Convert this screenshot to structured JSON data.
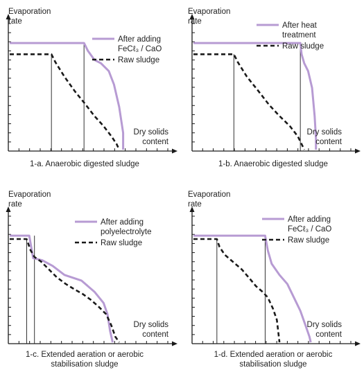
{
  "colors": {
    "after": "#b79bd3",
    "raw": "#1a1a1a",
    "axis": "#1a1a1a"
  },
  "chart_data": [
    {
      "type": "line",
      "ylabel_lines": [
        "Evaporation",
        "rate"
      ],
      "xlabel_lines": [
        "Dry solids",
        "content"
      ],
      "caption_lines": [
        "1-a. Anaerobic digested sludge"
      ],
      "legend_placement": "top-right",
      "xlim": [
        0,
        100
      ],
      "ylim": [
        0,
        100
      ],
      "series": [
        {
          "name_lines": [
            "After adding",
            "FeCℓ₃ / CaO"
          ],
          "style": "solid",
          "points": [
            [
              0,
              95
            ],
            [
              57,
              95
            ],
            [
              60,
              88
            ],
            [
              65,
              80
            ],
            [
              70,
              77
            ],
            [
              76,
              70
            ],
            [
              80,
              58
            ],
            [
              84,
              38
            ],
            [
              87,
              15
            ],
            [
              87,
              0
            ]
          ]
        },
        {
          "name_lines": [
            "Raw sludge"
          ],
          "style": "dashed",
          "points": [
            [
              0,
              85
            ],
            [
              32,
              85
            ],
            [
              35,
              78
            ],
            [
              42,
              65
            ],
            [
              50,
              52
            ],
            [
              57,
              42
            ],
            [
              65,
              30
            ],
            [
              72,
              21
            ],
            [
              78,
              12
            ],
            [
              82,
              5
            ],
            [
              84,
              0
            ]
          ]
        }
      ],
      "markers_x": [
        32,
        57
      ]
    },
    {
      "type": "line",
      "ylabel_lines": [
        "Evaporation",
        "rate"
      ],
      "xlabel_lines": [
        "Dry solids",
        "content"
      ],
      "caption_lines": [
        "1-b. Anaerobic digested sludge"
      ],
      "legend_placement": "top-right",
      "xlim": [
        0,
        100
      ],
      "ylim": [
        0,
        100
      ],
      "series": [
        {
          "name_lines": [
            "After heat",
            "treatment"
          ],
          "style": "solid",
          "points": [
            [
              0,
              95
            ],
            [
              82,
              95
            ],
            [
              83,
              85
            ],
            [
              85,
              77
            ],
            [
              88,
              70
            ],
            [
              91,
              55
            ],
            [
              93,
              30
            ],
            [
              94,
              10
            ],
            [
              94,
              0
            ]
          ]
        },
        {
          "name_lines": [
            "Raw sludge"
          ],
          "style": "dashed",
          "points": [
            [
              0,
              85
            ],
            [
              31,
              85
            ],
            [
              34,
              78
            ],
            [
              41,
              65
            ],
            [
              50,
              52
            ],
            [
              58,
              40
            ],
            [
              66,
              30
            ],
            [
              74,
              21
            ],
            [
              80,
              12
            ],
            [
              83,
              5
            ],
            [
              85,
              0
            ]
          ]
        }
      ],
      "markers_x": [
        31,
        82
      ]
    },
    {
      "type": "line",
      "ylabel_lines": [
        "Evaporation",
        "rate"
      ],
      "xlabel_lines": [
        "Dry solids",
        "content"
      ],
      "caption_lines": [
        "1-c. Extended aeration or aerobic",
        "stabilisation sludge"
      ],
      "legend_placement": "top-right",
      "xlim": [
        0,
        100
      ],
      "ylim": [
        0,
        100
      ],
      "series": [
        {
          "name_lines": [
            "After adding",
            "polyelectrolyte"
          ],
          "style": "solid",
          "points": [
            [
              0,
              95
            ],
            [
              15,
              95
            ],
            [
              18,
              75
            ],
            [
              25,
              73
            ],
            [
              33,
              68
            ],
            [
              42,
              60
            ],
            [
              55,
              55
            ],
            [
              65,
              45
            ],
            [
              72,
              35
            ],
            [
              75,
              25
            ],
            [
              77,
              10
            ],
            [
              79,
              0
            ]
          ]
        },
        {
          "name_lines": [
            "Raw sludge"
          ],
          "style": "dashed",
          "points": [
            [
              0,
              92
            ],
            [
              13,
              92
            ],
            [
              16,
              82
            ],
            [
              19,
              76
            ],
            [
              24,
              72
            ],
            [
              30,
              65
            ],
            [
              36,
              58
            ],
            [
              43,
              52
            ],
            [
              50,
              47
            ],
            [
              56,
              43
            ],
            [
              62,
              38
            ],
            [
              68,
              32
            ],
            [
              74,
              25
            ],
            [
              78,
              15
            ],
            [
              81,
              5
            ],
            [
              84,
              0
            ]
          ]
        }
      ],
      "markers_x": [
        13,
        19
      ]
    },
    {
      "type": "line",
      "ylabel_lines": [
        "Evaporation",
        "rate"
      ],
      "xlabel_lines": [
        "Dry solids",
        "content"
      ],
      "caption_lines": [
        "1-d. Extended aeration or aerobic",
        "stabilisation sludge"
      ],
      "legend_placement": "top-right",
      "xlim": [
        0,
        100
      ],
      "ylim": [
        0,
        100
      ],
      "series": [
        {
          "name_lines": [
            "After adding",
            "FeCℓ₃ / CaO"
          ],
          "style": "solid",
          "points": [
            [
              0,
              95
            ],
            [
              55,
              95
            ],
            [
              57,
              82
            ],
            [
              60,
              70
            ],
            [
              66,
              60
            ],
            [
              72,
              52
            ],
            [
              77,
              40
            ],
            [
              82,
              28
            ],
            [
              86,
              15
            ],
            [
              89,
              5
            ],
            [
              90,
              0
            ]
          ]
        },
        {
          "name_lines": [
            "Raw sludge"
          ],
          "style": "dashed",
          "points": [
            [
              0,
              92
            ],
            [
              18,
              92
            ],
            [
              20,
              85
            ],
            [
              24,
              78
            ],
            [
              30,
              72
            ],
            [
              37,
              65
            ],
            [
              43,
              57
            ],
            [
              48,
              50
            ],
            [
              53,
              45
            ],
            [
              57,
              40
            ],
            [
              61,
              30
            ],
            [
              64,
              20
            ],
            [
              65,
              10
            ],
            [
              66,
              0
            ]
          ]
        }
      ],
      "markers_x": [
        18,
        55
      ]
    }
  ]
}
